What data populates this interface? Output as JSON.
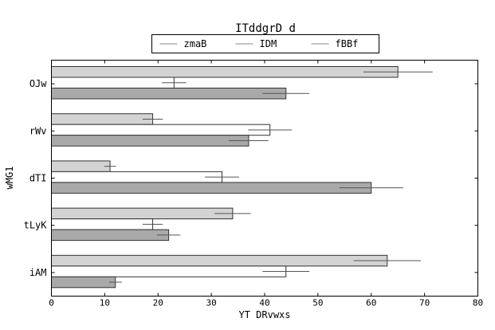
{
  "chart_data": {
    "type": "bar",
    "orientation": "horizontal",
    "title": "ITddgrD  d",
    "xlabel": "YT DRvwxs",
    "ylabel": "wMG1",
    "xlim": [
      0,
      80
    ],
    "xticks": [
      "0",
      "10",
      "20",
      "30",
      "40",
      "50",
      "60",
      "70",
      "80"
    ],
    "grid": false,
    "legend_position": "top-center",
    "categories": [
      "OJw",
      "rWv",
      "dTI",
      "tLyK",
      "iAM"
    ],
    "series": [
      {
        "name": "zmaB",
        "color": "#d3d3d3",
        "values": [
          65,
          19,
          11,
          34,
          63
        ],
        "errors": [
          6.5,
          1.9,
          1.1,
          3.4,
          6.3
        ]
      },
      {
        "name": "IDM",
        "color": "#ffffff",
        "values": [
          23,
          41,
          32,
          19,
          44
        ],
        "errors": [
          2.3,
          4.1,
          3.2,
          1.9,
          4.4
        ]
      },
      {
        "name": "fBBf",
        "color": "#a9a9a9",
        "values": [
          44,
          37,
          60,
          22,
          12
        ],
        "errors": [
          4.4,
          3.7,
          6.0,
          2.2,
          1.2
        ]
      }
    ]
  }
}
